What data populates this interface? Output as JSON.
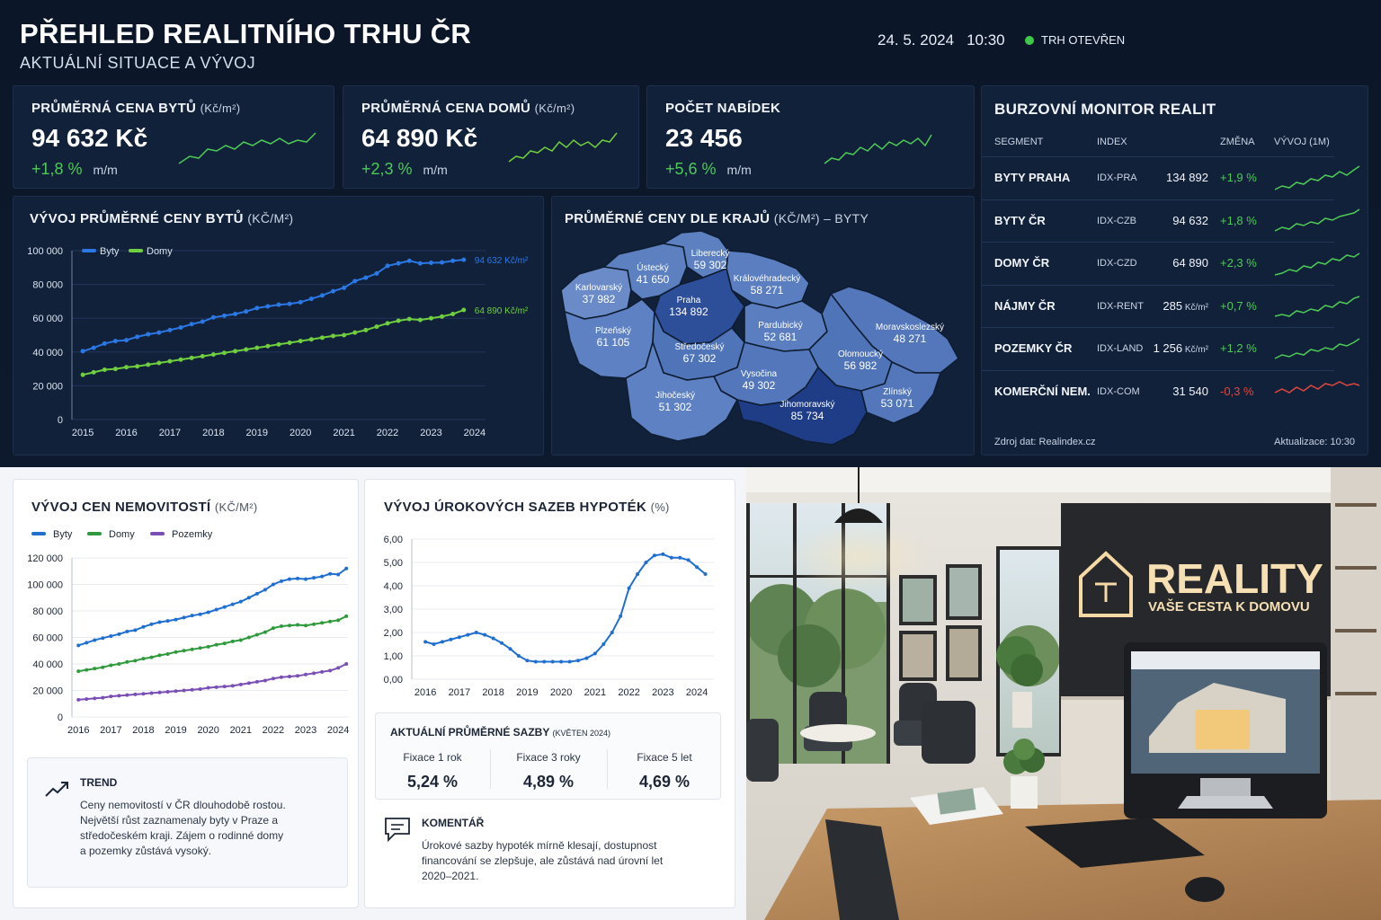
{
  "header": {
    "title": "PŘEHLED REALITNÍHO TRHU ČR",
    "subtitle": "AKTUÁLNÍ SITUACE A VÝVOJ",
    "date": "24. 5. 2024",
    "time": "10:30",
    "market_status": "TRH OTEVŘEN",
    "status_color": "#3ec94a"
  },
  "kpis": [
    {
      "label": "PRŮMĚRNÁ CENA BYTŮ",
      "unit": "(Kč/m²)",
      "value": "94 632 Kč",
      "change": "+1,8 %",
      "period": "m/m"
    },
    {
      "label": "PRŮMĚRNÁ CENA DOMŮ",
      "unit": "(Kč/m²)",
      "value": "64 890 Kč",
      "change": "+2,3 %",
      "period": "m/m"
    },
    {
      "label": "POČET NABÍDEK",
      "unit": "",
      "value": "23 456",
      "change": "+5,6 %",
      "period": "m/m"
    }
  ],
  "apartment_chart": {
    "title": "VÝVOJ PRŮMĚRNÉ CENY BYTŮ",
    "title_unit": "(KČ/M²)",
    "end_label_byty": "94 632 Kč/m²",
    "end_label_domy": "64 890 Kč/m²"
  },
  "map": {
    "title": "PRŮMĚRNÉ CENY DLE KRAJŮ",
    "title_unit": "(KČ/M²) – BYTY",
    "regions": [
      {
        "name": "Karlovarský",
        "value": "37 982"
      },
      {
        "name": "Ústecký",
        "value": "41 650"
      },
      {
        "name": "Liberecký",
        "value": "59 302"
      },
      {
        "name": "Královéhradecký",
        "value": "58 271"
      },
      {
        "name": "Praha",
        "value": "134 892"
      },
      {
        "name": "Plzeňský",
        "value": "61 105"
      },
      {
        "name": "Středočeský",
        "value": "67 302"
      },
      {
        "name": "Pardubický",
        "value": "52 681"
      },
      {
        "name": "Moravskoslezský",
        "value": "48 271"
      },
      {
        "name": "Olomoucký",
        "value": "56 982"
      },
      {
        "name": "Vysočina",
        "value": "49 302"
      },
      {
        "name": "Jihočeský",
        "value": "51 302"
      },
      {
        "name": "Jihomoravský",
        "value": "85 734"
      },
      {
        "name": "Zlínský",
        "value": "53 071"
      }
    ]
  },
  "monitor": {
    "title": "BURZOVNÍ MONITOR REALIT",
    "headers": {
      "segment": "SEGMENT",
      "index": "INDEX",
      "change": "ZMĚNA",
      "trend": "VÝVOJ (1M)"
    },
    "rows": [
      {
        "segment": "BYTY PRAHA",
        "index": "IDX-PRA",
        "value": "134 892",
        "unit": "",
        "change": "+1,9 %",
        "direction": "up"
      },
      {
        "segment": "BYTY ČR",
        "index": "IDX-CZB",
        "value": "94 632",
        "unit": "",
        "change": "+1,8 %",
        "direction": "up"
      },
      {
        "segment": "DOMY ČR",
        "index": "IDX-CZD",
        "value": "64 890",
        "unit": "",
        "change": "+2,3 %",
        "direction": "up"
      },
      {
        "segment": "NÁJMY ČR",
        "index": "IDX-RENT",
        "value": "285",
        "unit": "Kč/m²",
        "change": "+0,7 %",
        "direction": "up"
      },
      {
        "segment": "POZEMKY ČR",
        "index": "IDX-LAND",
        "value": "1 256",
        "unit": "Kč/m²",
        "change": "+1,2 %",
        "direction": "up"
      },
      {
        "segment": "KOMERČNÍ NEM.",
        "index": "IDX-COM",
        "value": "31 540",
        "unit": "",
        "change": "-0,3 %",
        "direction": "down"
      }
    ],
    "source": "Zdroj dat: Realindex.cz",
    "updated": "Aktualizace: 10:30",
    "colors": {
      "up": "#4ccb55",
      "down": "#e0473e"
    }
  },
  "property_chart": {
    "title": "VÝVOJ CEN NEMOVITOSTÍ",
    "title_unit": "(KČ/M²)"
  },
  "mortgage_chart": {
    "title": "VÝVOJ ÚROKOVÝCH SAZEB HYPOTÉK",
    "title_unit": "(%)"
  },
  "rates": {
    "title": "AKTUÁLNÍ PRŮMĚRNÉ SAZBY",
    "period": "(KVĚTEN 2024)",
    "items": [
      {
        "label": "Fixace 1 rok",
        "value": "5,24 %"
      },
      {
        "label": "Fixace 3 roky",
        "value": "4,89 %"
      },
      {
        "label": "Fixace 5 let",
        "value": "4,69 %"
      }
    ]
  },
  "trend": {
    "title": "TREND",
    "text_lines": [
      "Ceny nemovitostí v ČR dlouhodobě rostou.",
      "Největší růst zaznamenaly byty v Praze a",
      "středočeském kraji. Zájem o rodinné domy",
      "a pozemky zůstává vysoký."
    ],
    "icon": "trend-up-icon"
  },
  "comment": {
    "title": "KOMENTÁŘ",
    "text_lines": [
      "Úrokové sazby hypoték mírně klesají, dostupnost",
      "financování se zlepšuje, ale zůstává nad úrovní let",
      "2020–2021."
    ],
    "icon": "speech-bubble-icon"
  },
  "photo": {
    "sign_title": "REALITY",
    "sign_subtitle": "VAŠE CESTA K DOMOVU"
  },
  "chart_data": [
    {
      "id": "apartment",
      "type": "line",
      "x": [
        2015,
        2015.25,
        2015.5,
        2015.75,
        2016,
        2016.25,
        2016.5,
        2016.75,
        2017,
        2017.25,
        2017.5,
        2017.75,
        2018,
        2018.25,
        2018.5,
        2018.75,
        2019,
        2019.25,
        2019.5,
        2019.75,
        2020,
        2020.25,
        2020.5,
        2020.75,
        2021,
        2021.25,
        2021.5,
        2021.75,
        2022,
        2022.25,
        2022.5,
        2022.75,
        2023,
        2023.25,
        2023.5,
        2023.75
      ],
      "series": [
        {
          "name": "Byty",
          "color": "#2b78e4",
          "values": [
            40500,
            42500,
            45000,
            46500,
            47000,
            49000,
            50500,
            51500,
            53000,
            54500,
            56500,
            58000,
            60500,
            61500,
            62500,
            64000,
            66000,
            67000,
            68000,
            68500,
            69500,
            71500,
            73500,
            76000,
            78000,
            82000,
            84000,
            86500,
            91000,
            92500,
            94000,
            92500,
            92800,
            93000,
            94000,
            94632
          ]
        },
        {
          "name": "Domy",
          "color": "#6fcf3f",
          "values": [
            26500,
            28000,
            29500,
            30000,
            31000,
            31500,
            32500,
            33500,
            34500,
            35500,
            36500,
            37500,
            38500,
            39500,
            40500,
            41500,
            42500,
            43500,
            44500,
            45500,
            46500,
            47500,
            48500,
            49500,
            50000,
            51500,
            53000,
            55000,
            57000,
            58500,
            59500,
            59000,
            60000,
            61000,
            62500,
            64890
          ]
        }
      ],
      "xticks": [
        2015,
        2016,
        2017,
        2018,
        2019,
        2020,
        2021,
        2022,
        2023,
        2024
      ],
      "yticks": [
        0,
        20000,
        40000,
        60000,
        80000,
        100000
      ],
      "ytick_labels": [
        "0",
        "20 000",
        "40 000",
        "60 000",
        "80 000",
        "100 000"
      ],
      "ylim": [
        0,
        100000
      ],
      "legend": "top-left"
    },
    {
      "id": "property",
      "type": "line",
      "x": [
        2016,
        2016.25,
        2016.5,
        2016.75,
        2017,
        2017.25,
        2017.5,
        2017.75,
        2018,
        2018.25,
        2018.5,
        2018.75,
        2019,
        2019.25,
        2019.5,
        2019.75,
        2020,
        2020.25,
        2020.5,
        2020.75,
        2021,
        2021.25,
        2021.5,
        2021.75,
        2022,
        2022.25,
        2022.5,
        2022.75,
        2023,
        2023.25,
        2023.5,
        2023.75,
        2024,
        2024.25
      ],
      "series": [
        {
          "name": "Byty",
          "color": "#1f6fd1",
          "values": [
            54000,
            56000,
            58000,
            59500,
            61000,
            62500,
            64500,
            65500,
            68000,
            70000,
            71500,
            72500,
            73500,
            75000,
            76500,
            77500,
            79000,
            81000,
            83000,
            85000,
            87000,
            90000,
            93000,
            96000,
            100000,
            102500,
            104000,
            104500,
            104000,
            105000,
            106000,
            108000,
            107500,
            112000
          ]
        },
        {
          "name": "Domy",
          "color": "#2e9a3c",
          "values": [
            34500,
            35500,
            36500,
            37500,
            39000,
            40000,
            41500,
            42500,
            44000,
            45000,
            46500,
            47500,
            49000,
            50000,
            51000,
            52000,
            53000,
            54500,
            55500,
            57000,
            58000,
            60000,
            62000,
            64000,
            67000,
            68500,
            69000,
            69500,
            69000,
            70000,
            71000,
            72000,
            73000,
            76000
          ]
        },
        {
          "name": "Pozemky",
          "color": "#7a4fb5",
          "values": [
            13000,
            13500,
            14000,
            14500,
            15500,
            16000,
            16500,
            17000,
            17500,
            18000,
            18500,
            19000,
            19500,
            20000,
            20500,
            21000,
            22000,
            22500,
            23000,
            23500,
            24500,
            25500,
            26500,
            27500,
            29000,
            30000,
            30500,
            31000,
            32000,
            33000,
            34000,
            35000,
            37000,
            40000
          ]
        }
      ],
      "xticks": [
        2016,
        2017,
        2018,
        2019,
        2020,
        2021,
        2022,
        2023,
        2024
      ],
      "yticks": [
        0,
        20000,
        40000,
        60000,
        80000,
        100000,
        120000
      ],
      "ytick_labels": [
        "0",
        "20 000",
        "40 000",
        "60 000",
        "80 000",
        "100 000",
        "120 000"
      ],
      "ylim": [
        0,
        120000
      ],
      "legend": "top-left"
    },
    {
      "id": "mortgage",
      "type": "line",
      "x": [
        2016,
        2016.25,
        2016.5,
        2016.75,
        2017,
        2017.25,
        2017.5,
        2017.75,
        2018,
        2018.25,
        2018.5,
        2018.75,
        2019,
        2019.25,
        2019.5,
        2019.75,
        2020,
        2020.25,
        2020.5,
        2020.75,
        2021,
        2021.25,
        2021.5,
        2021.75,
        2022,
        2022.25,
        2022.5,
        2022.75,
        2023,
        2023.25,
        2023.5,
        2023.75,
        2024,
        2024.25
      ],
      "series": [
        {
          "name": "Sazby",
          "color": "#1f6fd1",
          "values": [
            1.6,
            1.5,
            1.6,
            1.7,
            1.8,
            1.9,
            2.0,
            1.9,
            1.75,
            1.55,
            1.3,
            1.0,
            0.8,
            0.75,
            0.75,
            0.75,
            0.75,
            0.75,
            0.8,
            0.9,
            1.1,
            1.5,
            2.0,
            2.7,
            3.9,
            4.5,
            5.0,
            5.3,
            5.35,
            5.2,
            5.2,
            5.1,
            4.8,
            4.5
          ]
        }
      ],
      "xticks": [
        2016,
        2017,
        2018,
        2019,
        2020,
        2021,
        2022,
        2023,
        2024
      ],
      "yticks": [
        0,
        1,
        2,
        3,
        4,
        5,
        6
      ],
      "ytick_labels": [
        "0,00",
        "1,00",
        "2,00",
        "3,00",
        "4,00",
        "5,00",
        "6,00"
      ],
      "ylim": [
        0,
        6
      ]
    }
  ]
}
